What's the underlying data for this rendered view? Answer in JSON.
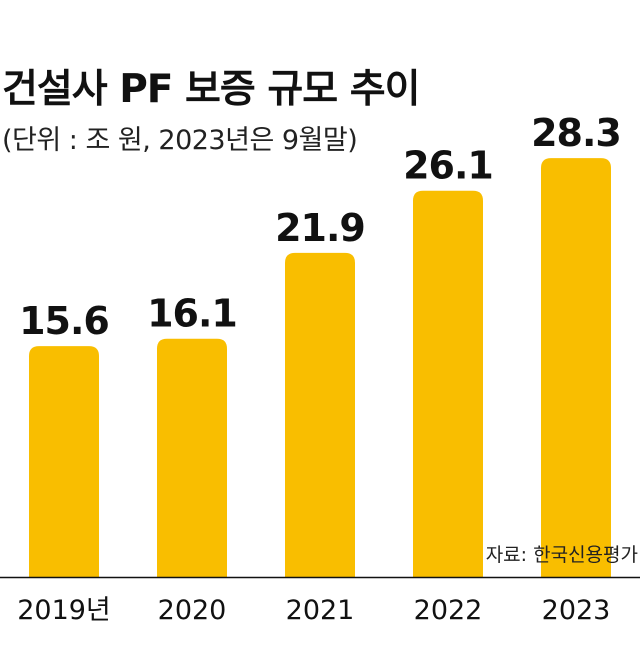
{
  "title": "건설사 PF 보증 규모 추이",
  "subtitle": "(단위 : 조 원, 2023년은 9월말)",
  "source": "자료: 한국신용평가",
  "colors": {
    "bar": "#F9BE00",
    "axis": "#111111"
  },
  "chart_data": {
    "type": "bar",
    "categories": [
      "2019년",
      "2020",
      "2021",
      "2022",
      "2023"
    ],
    "values": [
      15.6,
      16.1,
      21.9,
      26.1,
      28.3
    ],
    "value_labels": [
      "15.6",
      "16.1",
      "21.9",
      "26.1",
      "28.3"
    ],
    "title": "건설사 PF 보증 규모 추이",
    "subtitle": "(단위 : 조 원, 2023년은 9월말)",
    "unit": "조 원",
    "xlabel": "",
    "ylabel": "",
    "ylim": [
      0,
      30
    ],
    "grid": false,
    "legend": "none"
  }
}
